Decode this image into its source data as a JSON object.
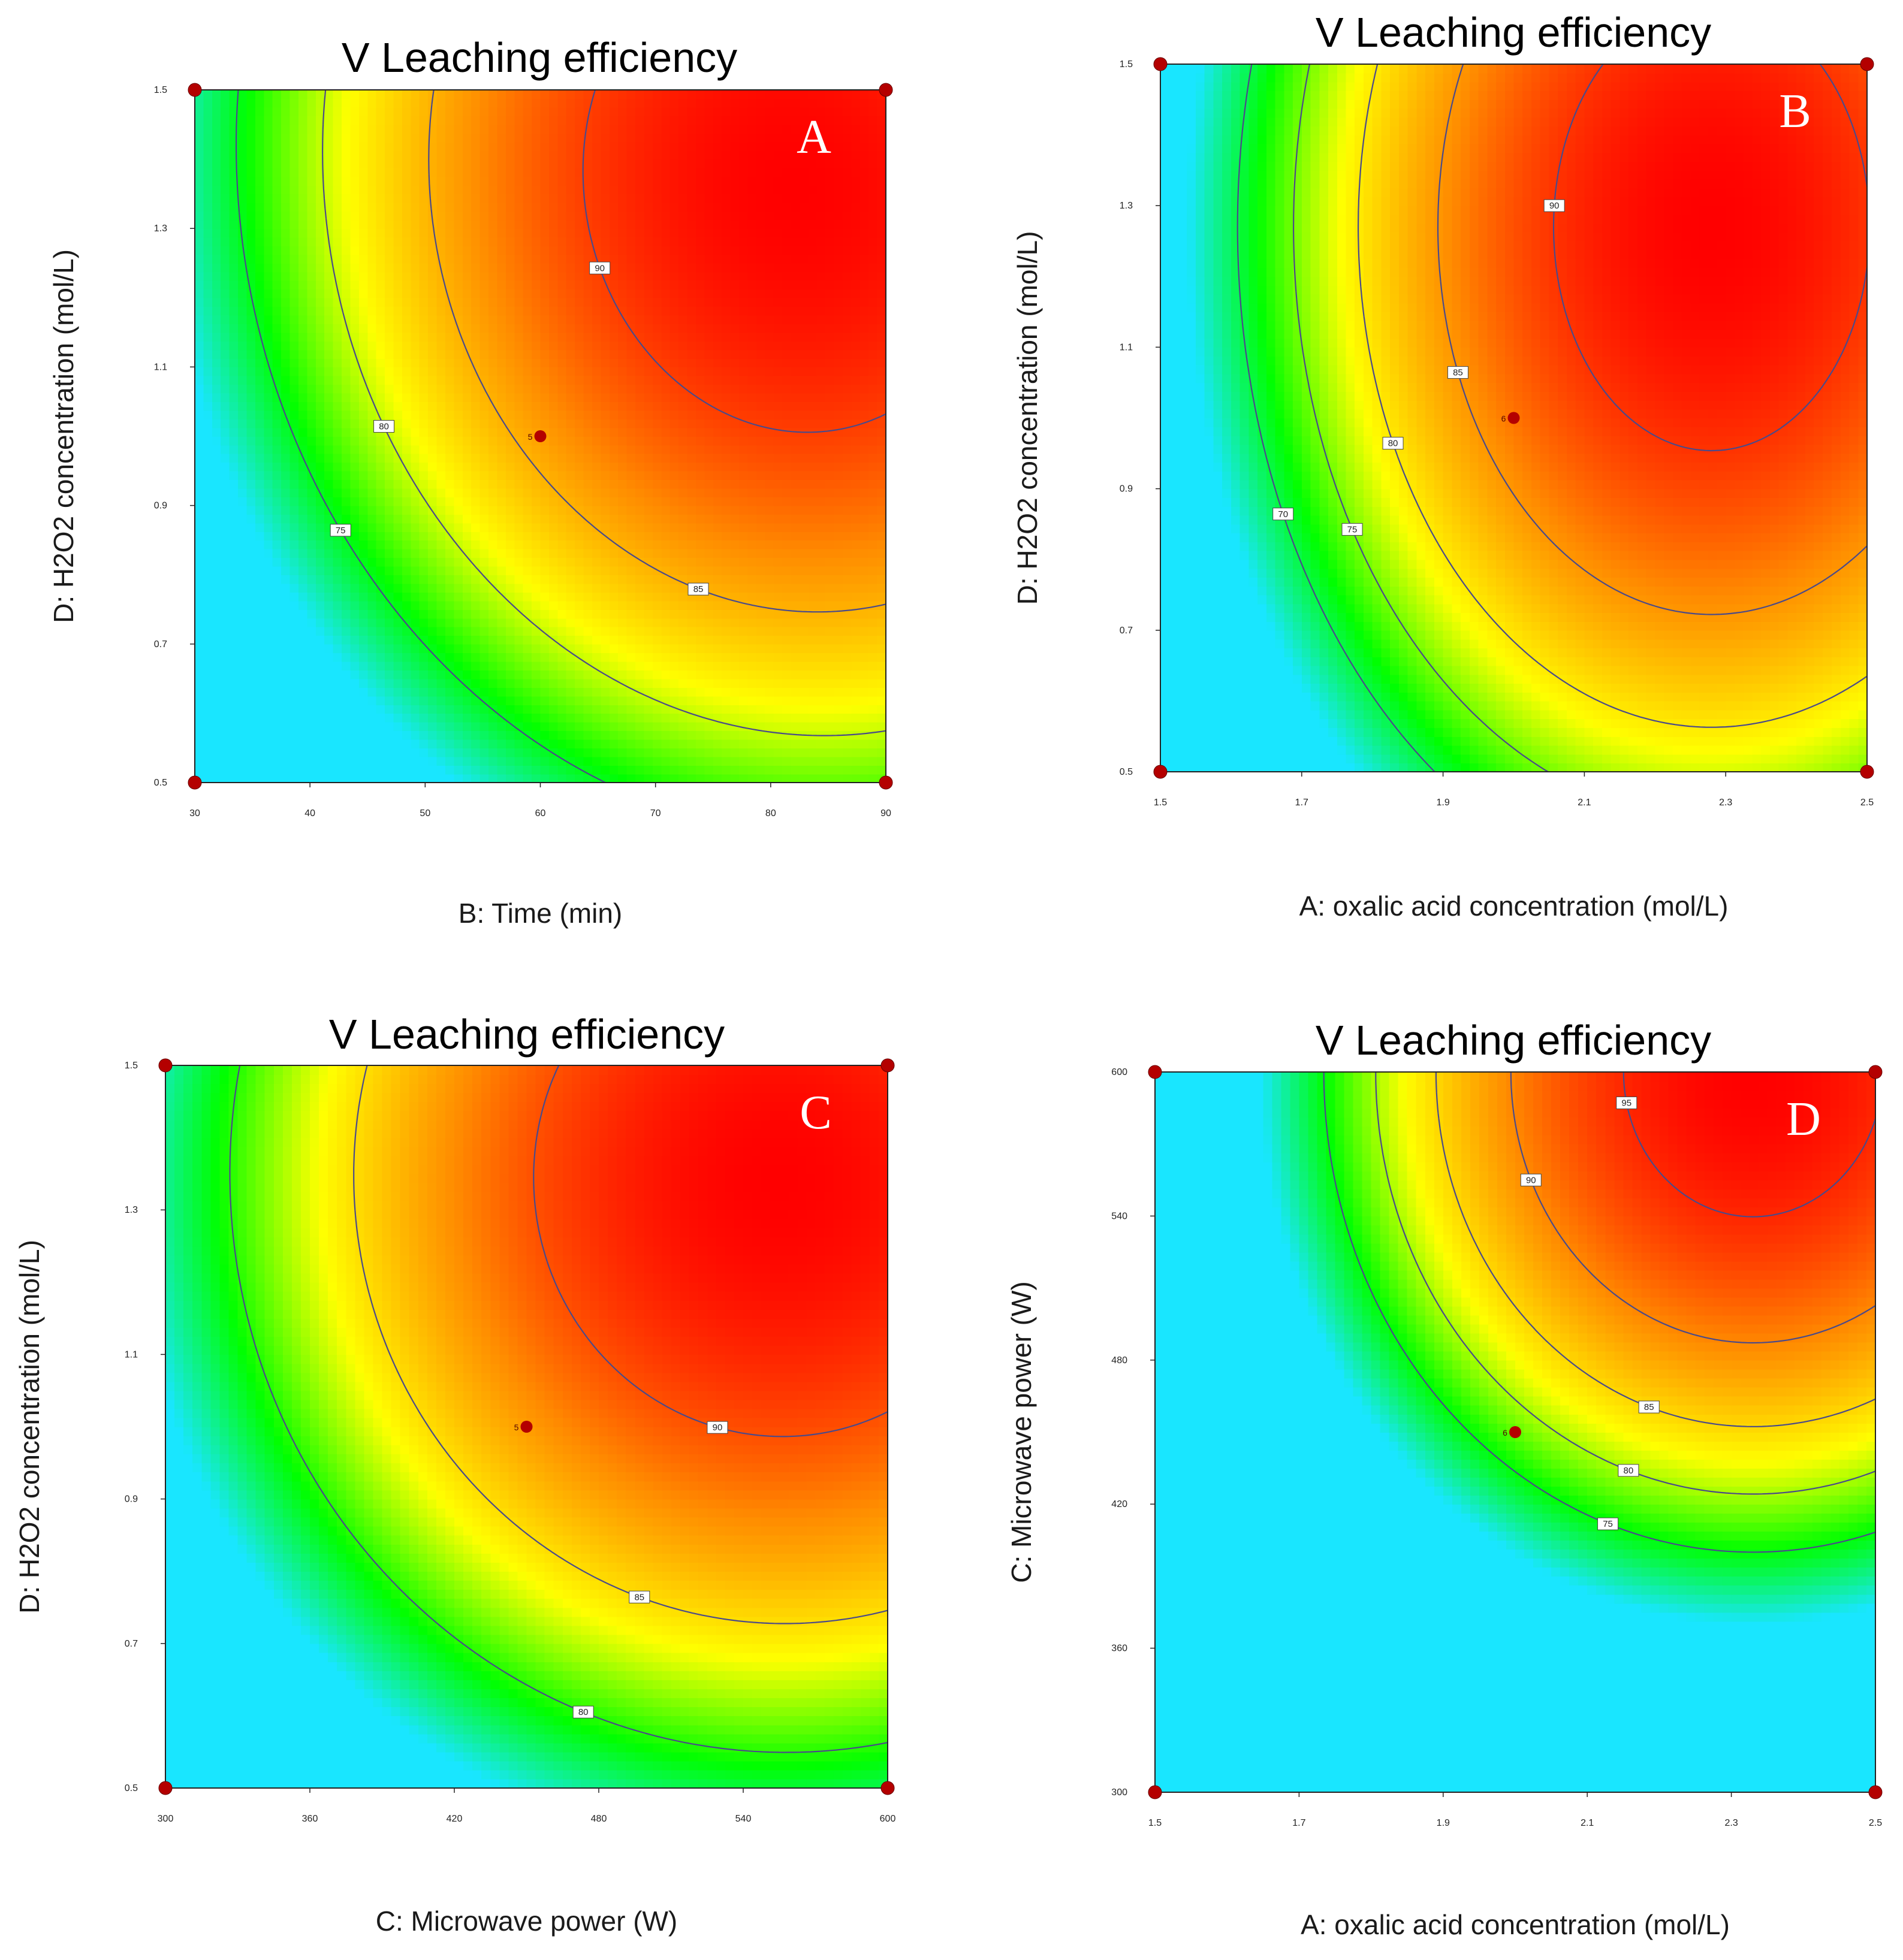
{
  "figure": "four contour plots of V leaching efficiency",
  "colors": {
    "low": "#19e6ff",
    "mid_low": "#00ff00",
    "mid": "#ffff00",
    "mid_high": "#ff8c00",
    "high": "#ff0000",
    "contour": "#4a4a8a",
    "design_point": "#b40000"
  },
  "chart_data": [
    {
      "type": "heatmap",
      "panel": "A",
      "title": "V Leaching efficiency",
      "xlabel": "B: Time (min)",
      "ylabel": "D: H2O2 concentration (mol/L)",
      "xlim": [
        30,
        90
      ],
      "ylim": [
        0.5,
        1.5
      ],
      "xticks": [
        "30",
        "40",
        "50",
        "60",
        "70",
        "80",
        "90"
      ],
      "yticks": [
        "0.5",
        "0.7",
        "0.9",
        "1.1",
        "1.3",
        "1.5"
      ],
      "contour_levels": [
        "75",
        "80",
        "85",
        "90"
      ],
      "center_point": {
        "x": 60,
        "y": 1.0,
        "label": "5"
      },
      "model": {
        "min": 70,
        "max": 92.5,
        "cx": 82,
        "cy": 1.36,
        "ax": 0.0075,
        "ay": 20,
        "tilt": 0.05
      }
    },
    {
      "type": "heatmap",
      "panel": "B",
      "title": "V Leaching efficiency",
      "xlabel": "A: oxalic acid concentration (mol/L)",
      "ylabel": "D: H2O2 concentration (mol/L)",
      "xlim": [
        1.5,
        2.5
      ],
      "ylim": [
        0.5,
        1.5
      ],
      "xticks": [
        "1.5",
        "1.7",
        "1.9",
        "2.1",
        "2.3",
        "2.5"
      ],
      "yticks": [
        "0.5",
        "0.7",
        "0.9",
        "1.1",
        "1.3",
        "1.5"
      ],
      "contour_levels": [
        "70",
        "75",
        "80",
        "85",
        "90"
      ],
      "center_point": {
        "x": 2.0,
        "y": 1.0,
        "label": "6"
      },
      "model": {
        "min": 65,
        "max": 92.5,
        "cx": 2.28,
        "cy": 1.27,
        "ax": 50,
        "ay": 25,
        "tilt": 0
      }
    },
    {
      "type": "heatmap",
      "panel": "C",
      "title": "V Leaching efficiency",
      "xlabel": "C: Microwave power (W)",
      "ylabel": "D: H2O2 concentration (mol/L)",
      "xlim": [
        300,
        600
      ],
      "ylim": [
        0.5,
        1.5
      ],
      "xticks": [
        "300",
        "360",
        "420",
        "480",
        "540",
        "600"
      ],
      "yticks": [
        "0.5",
        "0.7",
        "0.9",
        "1.1",
        "1.3",
        "1.5"
      ],
      "contour_levels": [
        "80",
        "85",
        "90"
      ],
      "center_point": {
        "x": 450,
        "y": 1.0,
        "label": "5"
      },
      "model": {
        "min": 75,
        "max": 92.5,
        "cx": 555,
        "cy": 1.34,
        "ax": 0.00024,
        "ay": 20,
        "tilt": 0.0018
      }
    },
    {
      "type": "heatmap",
      "panel": "D",
      "title": "V Leaching efficiency",
      "xlabel": "A: oxalic acid concentration (mol/L)",
      "ylabel": "C: Microwave power (W)",
      "xlim": [
        1.5,
        2.5
      ],
      "ylim": [
        300,
        600
      ],
      "xticks": [
        "1.5",
        "1.7",
        "1.9",
        "2.1",
        "2.3",
        "2.5"
      ],
      "yticks": [
        "300",
        "360",
        "420",
        "480",
        "540",
        "600"
      ],
      "contour_levels": [
        "75",
        "80",
        "85",
        "90",
        "95"
      ],
      "center_point": {
        "x": 2.0,
        "y": 450,
        "label": "6"
      },
      "model": {
        "min": 68,
        "max": 97,
        "cx": 2.33,
        "cy": 600,
        "ax": 62,
        "ay": 0.00055,
        "tilt": 0
      }
    }
  ]
}
